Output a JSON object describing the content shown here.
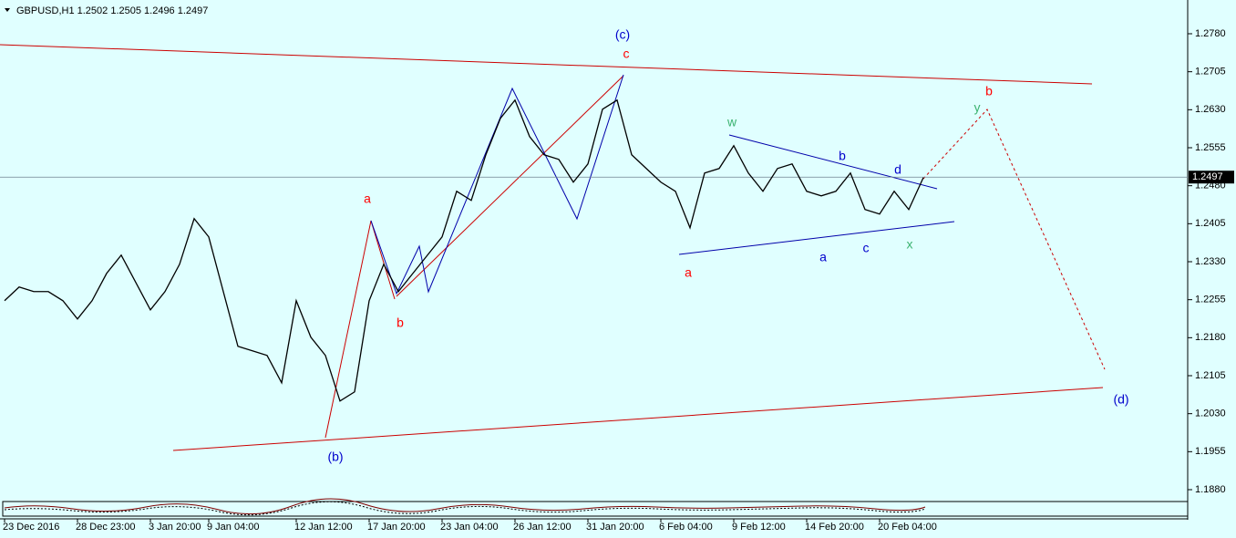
{
  "chart_data": {
    "type": "line",
    "title": "GBPUSD,H1  1.2502 1.2505 1.2496 1.2497",
    "series": [
      {
        "color": "#000000",
        "x": [
          0,
          2,
          4,
          6,
          8,
          10,
          12,
          14,
          16,
          18,
          20,
          22,
          24,
          26,
          28,
          30,
          32,
          34,
          36,
          38,
          40,
          42,
          44,
          46,
          48,
          50,
          52,
          54,
          56,
          58,
          60,
          62,
          64,
          66,
          68,
          70,
          72,
          74,
          76,
          78,
          80,
          82,
          84,
          86,
          88,
          90,
          92,
          94,
          96,
          98,
          100,
          102,
          104,
          106,
          108,
          110,
          112,
          114,
          116,
          118,
          120,
          122,
          124,
          126
        ],
        "values": [
          1.2253,
          1.228,
          1.2271,
          1.2271,
          1.2253,
          1.2217,
          1.2253,
          1.2307,
          1.2343,
          1.2289,
          1.2235,
          1.2271,
          1.2325,
          1.2415,
          1.2379,
          1.2271,
          1.2163,
          1.2154,
          1.2145,
          1.2091,
          1.2253,
          1.2181,
          1.2145,
          1.2055,
          1.2073,
          1.2253,
          1.2325,
          1.2271,
          1.2307,
          1.2343,
          1.2379,
          1.2469,
          1.2451,
          1.2541,
          1.2613,
          1.2649,
          1.2577,
          1.2541,
          1.2532,
          1.2487,
          1.2523,
          1.2631,
          1.2649,
          1.2541,
          1.2514,
          1.2487,
          1.2469,
          1.2397,
          1.2505,
          1.2514,
          1.2559,
          1.2505,
          1.2469,
          1.2514,
          1.2523,
          1.2469,
          1.246,
          1.2469,
          1.2505,
          1.2433,
          1.2424,
          1.2469,
          1.2433,
          1.2496
        ]
      }
    ],
    "xlim": [
      0,
      162
    ],
    "xticks": [
      {
        "value": 0,
        "label": "23 Dec 2016"
      },
      {
        "value": 10,
        "label": "28 Dec 23:00"
      },
      {
        "value": 20,
        "label": "3 Jan 20:00"
      },
      {
        "value": 28,
        "label": "9 Jan 04:00"
      },
      {
        "value": 40,
        "label": "12 Jan 12:00"
      },
      {
        "value": 50,
        "label": "17 Jan 20:00"
      },
      {
        "value": 60,
        "label": "23 Jan 04:00"
      },
      {
        "value": 70,
        "label": "26 Jan 12:00"
      },
      {
        "value": 80,
        "label": "31 Jan 20:00"
      },
      {
        "value": 90,
        "label": "6 Feb 04:00"
      },
      {
        "value": 100,
        "label": "9 Feb 12:00"
      },
      {
        "value": 110,
        "label": "14 Feb 20:00"
      },
      {
        "value": 120,
        "label": "20 Feb 04:00"
      }
    ],
    "ylim": [
      1.18602,
      1.28466
    ],
    "yticks": [
      {
        "value": 1.188,
        "label": "1.1880"
      },
      {
        "value": 1.1955,
        "label": "1.1955"
      },
      {
        "value": 1.203,
        "label": "1.2030"
      },
      {
        "value": 1.2105,
        "label": "1.2105"
      },
      {
        "value": 1.218,
        "label": "1.2180"
      },
      {
        "value": 1.2255,
        "label": "1.2255"
      },
      {
        "value": 1.233,
        "label": "1.2330"
      },
      {
        "value": 1.2405,
        "label": "1.2405"
      },
      {
        "value": 1.248,
        "label": "1.2480"
      },
      {
        "value": 1.2555,
        "label": "1.2555"
      },
      {
        "value": 1.263,
        "label": "1.2630"
      },
      {
        "value": 1.2705,
        "label": "1.2705"
      },
      {
        "value": 1.278,
        "label": "1.2780"
      }
    ],
    "last_price": 1.2497,
    "background": "#e0ffff",
    "annotations": [
      {
        "text": "(c)",
        "color": "#0000cc"
      },
      {
        "text": "c",
        "color": "#ff0000"
      },
      {
        "text": "a",
        "color": "#ff0000"
      },
      {
        "text": "b",
        "color": "#ff0000"
      },
      {
        "text": "(b)",
        "color": "#0000cc"
      },
      {
        "text": "w",
        "color": "#3cb371"
      },
      {
        "text": "b",
        "color": "#0000cc"
      },
      {
        "text": "d",
        "color": "#0000cc"
      },
      {
        "text": "a",
        "color": "#0000cc"
      },
      {
        "text": "c",
        "color": "#0000cc"
      },
      {
        "text": "x",
        "color": "#3cb371"
      },
      {
        "text": "a",
        "color": "#ff0000"
      },
      {
        "text": "y",
        "color": "#3cb371"
      },
      {
        "text": "b",
        "color": "#ff0000"
      },
      {
        "text": "(d)",
        "color": "#0000cc"
      }
    ]
  }
}
